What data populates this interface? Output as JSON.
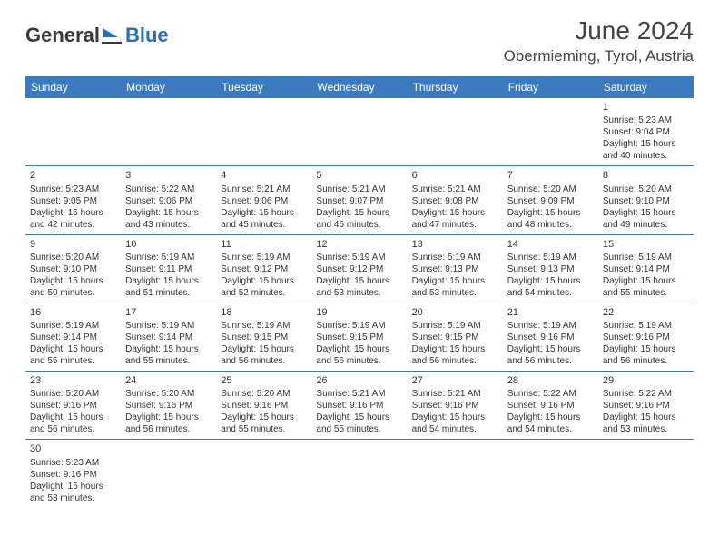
{
  "logo": {
    "text1": "General",
    "text2": "Blue"
  },
  "title": "June 2024",
  "location": "Obermieming, Tyrol, Austria",
  "dayHeaders": [
    "Sunday",
    "Monday",
    "Tuesday",
    "Wednesday",
    "Thursday",
    "Friday",
    "Saturday"
  ],
  "colors": {
    "headerBg": "#3a7abd",
    "headerText": "#ffffff",
    "cellBorder": "#3a7abd",
    "bodyText": "#333333",
    "logoDark": "#3a3a3a",
    "logoBlue": "#2a6db8"
  },
  "weeks": [
    [
      null,
      null,
      null,
      null,
      null,
      null,
      {
        "n": "1",
        "sr": "Sunrise: 5:23 AM",
        "ss": "Sunset: 9:04 PM",
        "d1": "Daylight: 15 hours",
        "d2": "and 40 minutes."
      }
    ],
    [
      {
        "n": "2",
        "sr": "Sunrise: 5:23 AM",
        "ss": "Sunset: 9:05 PM",
        "d1": "Daylight: 15 hours",
        "d2": "and 42 minutes."
      },
      {
        "n": "3",
        "sr": "Sunrise: 5:22 AM",
        "ss": "Sunset: 9:06 PM",
        "d1": "Daylight: 15 hours",
        "d2": "and 43 minutes."
      },
      {
        "n": "4",
        "sr": "Sunrise: 5:21 AM",
        "ss": "Sunset: 9:06 PM",
        "d1": "Daylight: 15 hours",
        "d2": "and 45 minutes."
      },
      {
        "n": "5",
        "sr": "Sunrise: 5:21 AM",
        "ss": "Sunset: 9:07 PM",
        "d1": "Daylight: 15 hours",
        "d2": "and 46 minutes."
      },
      {
        "n": "6",
        "sr": "Sunrise: 5:21 AM",
        "ss": "Sunset: 9:08 PM",
        "d1": "Daylight: 15 hours",
        "d2": "and 47 minutes."
      },
      {
        "n": "7",
        "sr": "Sunrise: 5:20 AM",
        "ss": "Sunset: 9:09 PM",
        "d1": "Daylight: 15 hours",
        "d2": "and 48 minutes."
      },
      {
        "n": "8",
        "sr": "Sunrise: 5:20 AM",
        "ss": "Sunset: 9:10 PM",
        "d1": "Daylight: 15 hours",
        "d2": "and 49 minutes."
      }
    ],
    [
      {
        "n": "9",
        "sr": "Sunrise: 5:20 AM",
        "ss": "Sunset: 9:10 PM",
        "d1": "Daylight: 15 hours",
        "d2": "and 50 minutes."
      },
      {
        "n": "10",
        "sr": "Sunrise: 5:19 AM",
        "ss": "Sunset: 9:11 PM",
        "d1": "Daylight: 15 hours",
        "d2": "and 51 minutes."
      },
      {
        "n": "11",
        "sr": "Sunrise: 5:19 AM",
        "ss": "Sunset: 9:12 PM",
        "d1": "Daylight: 15 hours",
        "d2": "and 52 minutes."
      },
      {
        "n": "12",
        "sr": "Sunrise: 5:19 AM",
        "ss": "Sunset: 9:12 PM",
        "d1": "Daylight: 15 hours",
        "d2": "and 53 minutes."
      },
      {
        "n": "13",
        "sr": "Sunrise: 5:19 AM",
        "ss": "Sunset: 9:13 PM",
        "d1": "Daylight: 15 hours",
        "d2": "and 53 minutes."
      },
      {
        "n": "14",
        "sr": "Sunrise: 5:19 AM",
        "ss": "Sunset: 9:13 PM",
        "d1": "Daylight: 15 hours",
        "d2": "and 54 minutes."
      },
      {
        "n": "15",
        "sr": "Sunrise: 5:19 AM",
        "ss": "Sunset: 9:14 PM",
        "d1": "Daylight: 15 hours",
        "d2": "and 55 minutes."
      }
    ],
    [
      {
        "n": "16",
        "sr": "Sunrise: 5:19 AM",
        "ss": "Sunset: 9:14 PM",
        "d1": "Daylight: 15 hours",
        "d2": "and 55 minutes."
      },
      {
        "n": "17",
        "sr": "Sunrise: 5:19 AM",
        "ss": "Sunset: 9:14 PM",
        "d1": "Daylight: 15 hours",
        "d2": "and 55 minutes."
      },
      {
        "n": "18",
        "sr": "Sunrise: 5:19 AM",
        "ss": "Sunset: 9:15 PM",
        "d1": "Daylight: 15 hours",
        "d2": "and 56 minutes."
      },
      {
        "n": "19",
        "sr": "Sunrise: 5:19 AM",
        "ss": "Sunset: 9:15 PM",
        "d1": "Daylight: 15 hours",
        "d2": "and 56 minutes."
      },
      {
        "n": "20",
        "sr": "Sunrise: 5:19 AM",
        "ss": "Sunset: 9:15 PM",
        "d1": "Daylight: 15 hours",
        "d2": "and 56 minutes."
      },
      {
        "n": "21",
        "sr": "Sunrise: 5:19 AM",
        "ss": "Sunset: 9:16 PM",
        "d1": "Daylight: 15 hours",
        "d2": "and 56 minutes."
      },
      {
        "n": "22",
        "sr": "Sunrise: 5:19 AM",
        "ss": "Sunset: 9:16 PM",
        "d1": "Daylight: 15 hours",
        "d2": "and 56 minutes."
      }
    ],
    [
      {
        "n": "23",
        "sr": "Sunrise: 5:20 AM",
        "ss": "Sunset: 9:16 PM",
        "d1": "Daylight: 15 hours",
        "d2": "and 56 minutes."
      },
      {
        "n": "24",
        "sr": "Sunrise: 5:20 AM",
        "ss": "Sunset: 9:16 PM",
        "d1": "Daylight: 15 hours",
        "d2": "and 56 minutes."
      },
      {
        "n": "25",
        "sr": "Sunrise: 5:20 AM",
        "ss": "Sunset: 9:16 PM",
        "d1": "Daylight: 15 hours",
        "d2": "and 55 minutes."
      },
      {
        "n": "26",
        "sr": "Sunrise: 5:21 AM",
        "ss": "Sunset: 9:16 PM",
        "d1": "Daylight: 15 hours",
        "d2": "and 55 minutes."
      },
      {
        "n": "27",
        "sr": "Sunrise: 5:21 AM",
        "ss": "Sunset: 9:16 PM",
        "d1": "Daylight: 15 hours",
        "d2": "and 54 minutes."
      },
      {
        "n": "28",
        "sr": "Sunrise: 5:22 AM",
        "ss": "Sunset: 9:16 PM",
        "d1": "Daylight: 15 hours",
        "d2": "and 54 minutes."
      },
      {
        "n": "29",
        "sr": "Sunrise: 5:22 AM",
        "ss": "Sunset: 9:16 PM",
        "d1": "Daylight: 15 hours",
        "d2": "and 53 minutes."
      }
    ],
    [
      {
        "n": "30",
        "sr": "Sunrise: 5:23 AM",
        "ss": "Sunset: 9:16 PM",
        "d1": "Daylight: 15 hours",
        "d2": "and 53 minutes."
      },
      null,
      null,
      null,
      null,
      null,
      null
    ]
  ]
}
